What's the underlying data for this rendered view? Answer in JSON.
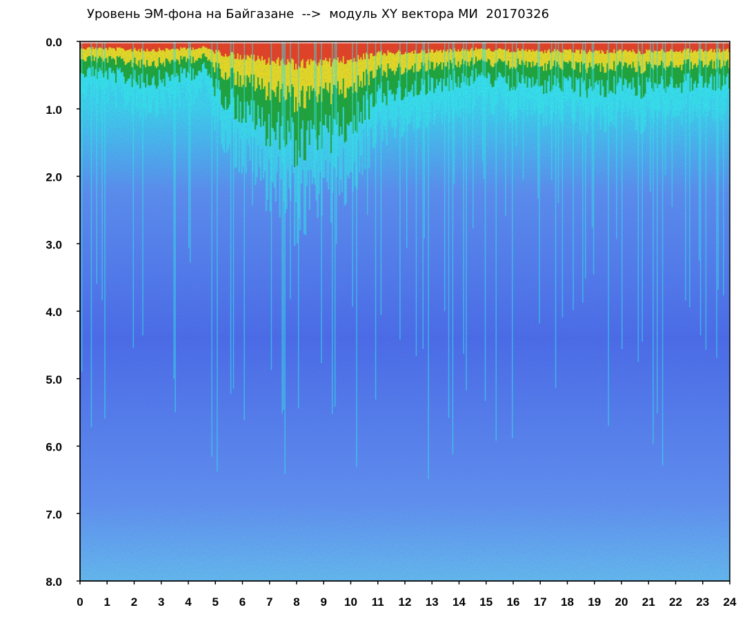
{
  "chart_data": {
    "type": "heatmap",
    "title": "Уровень ЭМ-фона на Байгазане  -->  модуль XY вектора МИ  20170326",
    "x_ticks": [
      "0",
      "1",
      "2",
      "3",
      "4",
      "5",
      "6",
      "7",
      "8",
      "9",
      "10",
      "11",
      "12",
      "13",
      "14",
      "15",
      "16",
      "17",
      "18",
      "19",
      "20",
      "21",
      "22",
      "23",
      "24"
    ],
    "y_ticks": [
      "0.0",
      "1.0",
      "2.0",
      "3.0",
      "4.0",
      "5.0",
      "6.0",
      "7.0",
      "8.0"
    ],
    "xlim": [
      0,
      24
    ],
    "ylim": [
      0,
      8
    ],
    "y_inverted": true,
    "colormap": [
      "#ffffff",
      "#ff2a00",
      "#ffd800",
      "#ffff40",
      "#1a9e1a",
      "#33e6e6",
      "#7a96f0",
      "#1e2ee0"
    ],
    "colormap_note": "",
    "intensity_profile": {
      "x": [
        0,
        1,
        2,
        3,
        4,
        4.6,
        5,
        6,
        7,
        8,
        9,
        10,
        10.6,
        11,
        12,
        13,
        14,
        15,
        15.2,
        16,
        17,
        18,
        19,
        20,
        21,
        22,
        23,
        24
      ],
      "hot_depth": [
        0.55,
        0.6,
        0.7,
        0.7,
        0.6,
        0.5,
        0.9,
        1.3,
        1.6,
        1.9,
        1.8,
        1.5,
        1.2,
        1.0,
        0.9,
        0.8,
        0.7,
        0.6,
        0.7,
        0.75,
        0.8,
        0.85,
        0.85,
        0.85,
        0.85,
        0.8,
        0.75,
        0.75
      ]
    },
    "legend": "none",
    "grid": false
  },
  "title_text": "Уровень ЭМ-фона на Байгазане  -->  модуль XY вектора МИ  20170326"
}
